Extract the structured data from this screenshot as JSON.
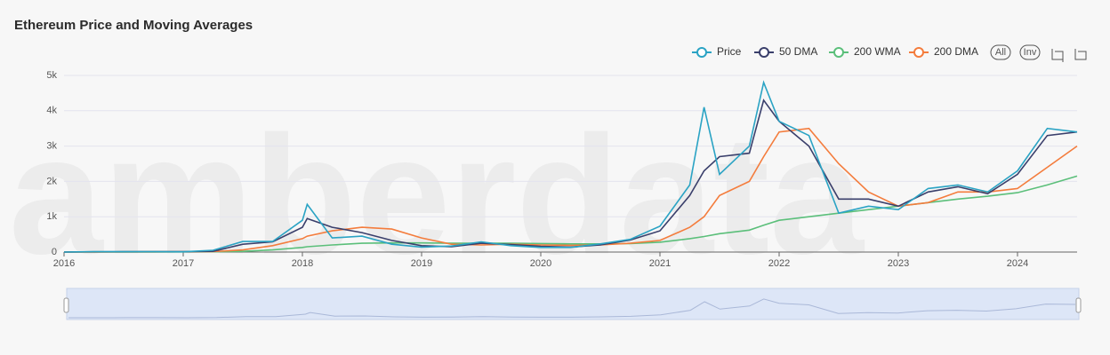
{
  "chart_data": {
    "type": "line",
    "title": "Ethereum Price and Moving Averages",
    "watermark": "amberdata",
    "buttons": [
      "All",
      "Inv"
    ],
    "x": [
      2016,
      2016.25,
      2016.5,
      2016.75,
      2017,
      2017.25,
      2017.5,
      2017.75,
      2018,
      2018.04,
      2018.25,
      2018.5,
      2018.75,
      2019,
      2019.25,
      2019.5,
      2019.75,
      2020,
      2020.25,
      2020.5,
      2020.75,
      2021,
      2021.25,
      2021.37,
      2021.5,
      2021.75,
      2021.87,
      2022,
      2022.25,
      2022.5,
      2022.75,
      2023,
      2023.25,
      2023.5,
      2023.75,
      2024,
      2024.25,
      2024.5
    ],
    "series": [
      {
        "name": "Price",
        "color": "#2aa3c4",
        "values": [
          1,
          9,
          12,
          13,
          8,
          50,
          300,
          300,
          900,
          1350,
          400,
          450,
          220,
          140,
          170,
          290,
          180,
          130,
          130,
          230,
          360,
          730,
          1900,
          4100,
          2200,
          3000,
          4800,
          3700,
          3300,
          1100,
          1300,
          1200,
          1800,
          1900,
          1700,
          2300,
          3500,
          3400
        ]
      },
      {
        "name": "50 DMA",
        "color": "#3a3f6b",
        "values": [
          1,
          8,
          11,
          12,
          10,
          20,
          220,
          290,
          700,
          950,
          700,
          550,
          330,
          180,
          150,
          250,
          210,
          160,
          140,
          200,
          340,
          600,
          1600,
          2300,
          2700,
          2800,
          4300,
          3700,
          3000,
          1500,
          1500,
          1300,
          1700,
          1850,
          1650,
          2200,
          3300,
          3400
        ]
      },
      {
        "name": "200 WMA",
        "color": "#5bbf7a",
        "values": [
          0,
          1,
          2,
          3,
          5,
          8,
          20,
          60,
          130,
          150,
          200,
          250,
          260,
          260,
          250,
          250,
          250,
          240,
          230,
          230,
          240,
          280,
          380,
          440,
          520,
          620,
          760,
          900,
          1000,
          1100,
          1200,
          1300,
          1400,
          1500,
          1580,
          1680,
          1900,
          2150
        ]
      },
      {
        "name": "200 DMA",
        "color": "#f47c3c",
        "values": [
          1,
          3,
          8,
          10,
          11,
          12,
          60,
          180,
          380,
          450,
          600,
          700,
          650,
          400,
          220,
          200,
          220,
          200,
          190,
          200,
          250,
          330,
          700,
          1000,
          1600,
          2000,
          2700,
          3400,
          3500,
          2500,
          1700,
          1300,
          1400,
          1700,
          1700,
          1800,
          2400,
          3000
        ]
      }
    ],
    "xlim": [
      2016,
      2024.5
    ],
    "xticks": [
      2016,
      2017,
      2018,
      2019,
      2020,
      2021,
      2022,
      2023,
      2024
    ],
    "ylim": [
      0,
      5000
    ],
    "yticks": [
      0,
      {
        "value": 1000,
        "label": "1k"
      },
      {
        "value": 2000,
        "label": "2k"
      },
      {
        "value": 3000,
        "label": "3k"
      },
      {
        "value": 4000,
        "label": "4k"
      },
      {
        "value": 5000,
        "label": "5k"
      }
    ],
    "grid": true
  }
}
